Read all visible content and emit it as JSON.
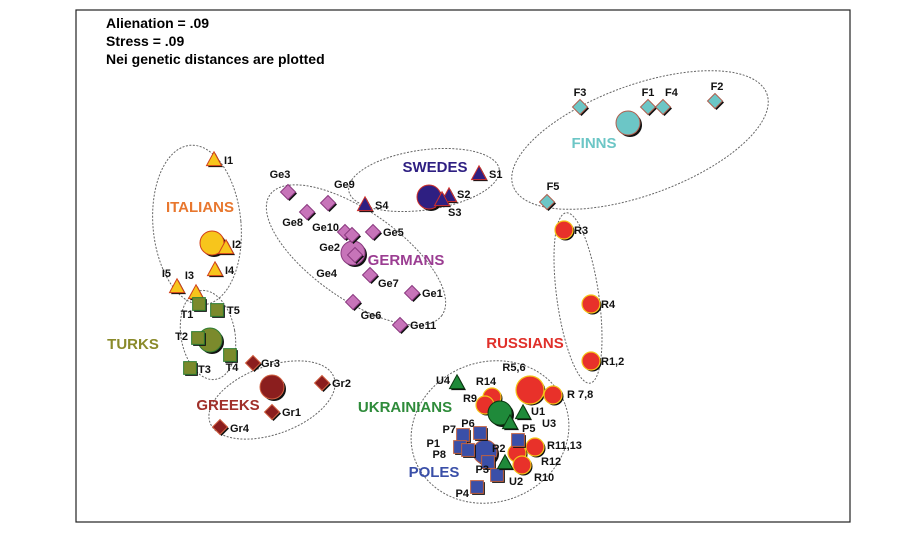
{
  "chart_data": {
    "type": "scatter",
    "title_lines": [
      "Alienation = .09",
      "Stress = .09",
      "Nei genetic distances are plotted"
    ],
    "xlabel": "",
    "ylabel": "",
    "xlim": [
      -3.74,
      4.0
    ],
    "ylim": [
      -2.22,
      2.9
    ],
    "grid": false,
    "groups": [
      {
        "name": "ITALIANS",
        "color": "#e8772e",
        "fill": "#f7c51c",
        "stroke": "#d2401a",
        "shape": "triangle",
        "label_xy": [
          -2.5,
          0.88
        ],
        "mean": [
          -2.38,
          0.57
        ],
        "points": [
          {
            "id": "I1",
            "x": -2.36,
            "y": 1.4
          },
          {
            "id": "I2",
            "x": -2.24,
            "y": 0.52
          },
          {
            "id": "I3",
            "x": -2.54,
            "y": 0.07
          },
          {
            "id": "I4",
            "x": -2.35,
            "y": 0.3
          },
          {
            "id": "I5",
            "x": -2.73,
            "y": 0.13
          }
        ]
      },
      {
        "name": "TURKS",
        "color": "#8a8a2a",
        "fill": "#7b8a2c",
        "stroke": "#2e7d32",
        "shape": "square",
        "label_xy": [
          -3.17,
          -0.49
        ],
        "mean": [
          -2.4,
          -0.4
        ],
        "points": [
          {
            "id": "T1",
            "x": -2.51,
            "y": -0.04
          },
          {
            "id": "T5",
            "x": -2.33,
            "y": -0.1
          },
          {
            "id": "T2",
            "x": -2.52,
            "y": -0.38
          },
          {
            "id": "T4",
            "x": -2.2,
            "y": -0.55
          },
          {
            "id": "T3",
            "x": -2.6,
            "y": -0.68
          }
        ]
      },
      {
        "name": "GREEKS",
        "color": "#a0302a",
        "fill": "#8b1e1e",
        "stroke": "#d06040",
        "shape": "diamond",
        "label_xy": [
          -2.22,
          -1.1
        ],
        "mean": [
          -1.78,
          -0.87
        ],
        "points": [
          {
            "id": "Gr3",
            "x": -1.97,
            "y": -0.63
          },
          {
            "id": "Gr2",
            "x": -1.28,
            "y": -0.83
          },
          {
            "id": "Gr1",
            "x": -1.78,
            "y": -1.12
          },
          {
            "id": "Gr4",
            "x": -2.3,
            "y": -1.27
          }
        ]
      },
      {
        "name": "GERMANS",
        "color": "#9b3d92",
        "fill": "#c774b9",
        "stroke": "#8a3a80",
        "shape": "diamond",
        "label_xy": [
          -0.44,
          0.35
        ],
        "mean": [
          -0.97,
          0.47
        ],
        "points": [
          {
            "id": "Ge3",
            "x": -1.62,
            "y": 1.08
          },
          {
            "id": "Ge9",
            "x": -1.22,
            "y": 0.97
          },
          {
            "id": "Ge8",
            "x": -1.43,
            "y": 0.88
          },
          {
            "id": "Ge10",
            "x": -1.05,
            "y": 0.68
          },
          {
            "id": "Ge2",
            "x": -0.98,
            "y": 0.65
          },
          {
            "id": "Ge5",
            "x": -0.77,
            "y": 0.68
          },
          {
            "id": "Ge4",
            "x": -0.95,
            "y": 0.45
          },
          {
            "id": "Ge7",
            "x": -0.8,
            "y": 0.25
          },
          {
            "id": "Ge1",
            "x": -0.38,
            "y": 0.07
          },
          {
            "id": "Ge6",
            "x": -0.97,
            "y": -0.02
          },
          {
            "id": "Ge11",
            "x": -0.5,
            "y": -0.25
          }
        ]
      },
      {
        "name": "SWEDES",
        "color": "#2e1f82",
        "fill": "#2e1f82",
        "stroke": "#d0302a",
        "shape": "triangle",
        "label_xy": [
          -0.15,
          1.28
        ],
        "mean": [
          -0.21,
          1.03
        ],
        "points": [
          {
            "id": "S4",
            "x": -0.85,
            "y": 0.95
          },
          {
            "id": "S1",
            "x": 0.29,
            "y": 1.26
          },
          {
            "id": "S2",
            "x": -0.01,
            "y": 1.04
          },
          {
            "id": "S3",
            "x": -0.08,
            "y": 1.0
          }
        ]
      },
      {
        "name": "FINNS",
        "color": "#6cc6c6",
        "fill": "#6cc6c6",
        "stroke": "#b06050",
        "shape": "diamond",
        "label_xy": [
          1.44,
          1.52
        ],
        "mean": [
          1.78,
          1.77
        ],
        "points": [
          {
            "id": "F3",
            "x": 1.3,
            "y": 1.93
          },
          {
            "id": "F1",
            "x": 1.98,
            "y": 1.93
          },
          {
            "id": "F4",
            "x": 2.13,
            "y": 1.93
          },
          {
            "id": "F2",
            "x": 2.65,
            "y": 1.99
          },
          {
            "id": "F5",
            "x": 0.97,
            "y": 0.98
          }
        ]
      },
      {
        "name": "RUSSIANS",
        "color": "#e0302a",
        "fill": "#e8312a",
        "stroke": "#f5c518",
        "shape": "circle",
        "label_xy": [
          0.75,
          -0.48
        ],
        "mean": null,
        "points": [
          {
            "id": "R3",
            "x": 1.14,
            "y": 0.7
          },
          {
            "id": "R4",
            "x": 1.41,
            "y": -0.04
          },
          {
            "id": "R1,2",
            "x": 1.41,
            "y": -0.61
          },
          {
            "id": "R5,6",
            "x": 0.8,
            "y": -0.9,
            "big": true
          },
          {
            "id": "R 7,8",
            "x": 1.03,
            "y": -0.95
          },
          {
            "id": "R14",
            "x": 0.42,
            "y": -0.97
          },
          {
            "id": "R9",
            "x": 0.35,
            "y": -1.05
          },
          {
            "id": "R11,13",
            "x": 0.85,
            "y": -1.47
          },
          {
            "id": "R12",
            "x": 0.67,
            "y": -1.53
          },
          {
            "id": "R10",
            "x": 0.72,
            "y": -1.65
          }
        ]
      },
      {
        "name": "POLES",
        "color": "#3a4fa8",
        "fill": "#3a4fa8",
        "stroke": "#c06040",
        "shape": "square",
        "label_xy": [
          -0.16,
          -1.77
        ],
        "mean": [
          0.35,
          -1.52
        ],
        "points": [
          {
            "id": "P6",
            "x": 0.3,
            "y": -1.33
          },
          {
            "id": "P7",
            "x": 0.13,
            "y": -1.35
          },
          {
            "id": "P1",
            "x": 0.1,
            "y": -1.47
          },
          {
            "id": "P8",
            "x": 0.18,
            "y": -1.5
          },
          {
            "id": "P5",
            "x": 0.68,
            "y": -1.4
          },
          {
            "id": "P2",
            "x": 0.38,
            "y": -1.62
          },
          {
            "id": "P3",
            "x": 0.47,
            "y": -1.75
          },
          {
            "id": "P4",
            "x": 0.27,
            "y": -1.87
          }
        ]
      },
      {
        "name": "UKRAINIANS",
        "color": "#2e8b3a",
        "fill": "#1f8a3a",
        "stroke": "#0a3a10",
        "shape": "triangle",
        "label_xy": [
          -0.45,
          -1.12
        ],
        "mean": [
          0.5,
          -1.13
        ],
        "points": [
          {
            "id": "U4",
            "x": 0.07,
            "y": -0.83
          },
          {
            "id": "U1",
            "x": 0.73,
            "y": -1.13
          },
          {
            "id": "U3",
            "x": 0.6,
            "y": -1.23
          },
          {
            "id": "U2",
            "x": 0.55,
            "y": -1.63
          }
        ]
      }
    ]
  }
}
